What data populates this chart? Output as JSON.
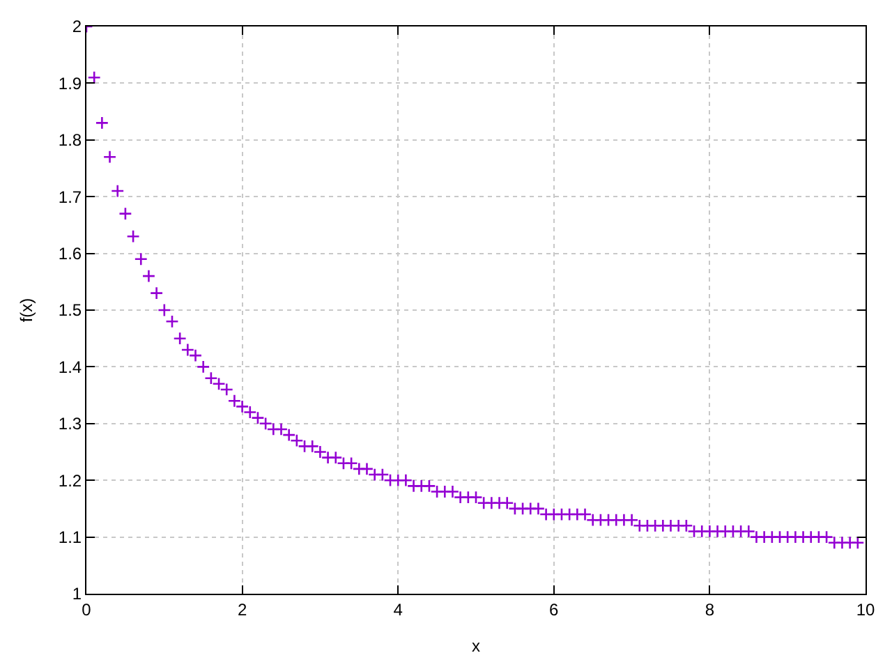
{
  "chart_data": {
    "type": "scatter",
    "xlabel": "x",
    "ylabel": "f(x)",
    "x": [
      0.0,
      0.1,
      0.2,
      0.3,
      0.4,
      0.5,
      0.6,
      0.7,
      0.8,
      0.9,
      1.0,
      1.1,
      1.2,
      1.3,
      1.4,
      1.5,
      1.6,
      1.7,
      1.8,
      1.9,
      2.0,
      2.1,
      2.2,
      2.3,
      2.4,
      2.5,
      2.6,
      2.7,
      2.8,
      2.9,
      3.0,
      3.1,
      3.2,
      3.3,
      3.4,
      3.5,
      3.6,
      3.7,
      3.8,
      3.9,
      4.0,
      4.1,
      4.2,
      4.3,
      4.4,
      4.5,
      4.6,
      4.7,
      4.8,
      4.9,
      5.0,
      5.1,
      5.2,
      5.3,
      5.4,
      5.5,
      5.6,
      5.7,
      5.8,
      5.9,
      6.0,
      6.1,
      6.2,
      6.3,
      6.4,
      6.5,
      6.6,
      6.7,
      6.8,
      6.9,
      7.0,
      7.1,
      7.2,
      7.3,
      7.4,
      7.5,
      7.6,
      7.7,
      7.8,
      7.9,
      8.0,
      8.1,
      8.2,
      8.3,
      8.4,
      8.5,
      8.6,
      8.7,
      8.8,
      8.9,
      9.0,
      9.1,
      9.2,
      9.3,
      9.4,
      9.5,
      9.6,
      9.7,
      9.8,
      9.9
    ],
    "series": [
      {
        "color": "#9400d3",
        "values": [
          2.0,
          1.91,
          1.83,
          1.77,
          1.71,
          1.67,
          1.63,
          1.59,
          1.56,
          1.53,
          1.5,
          1.48,
          1.45,
          1.43,
          1.42,
          1.4,
          1.38,
          1.37,
          1.36,
          1.34,
          1.33,
          1.32,
          1.31,
          1.3,
          1.29,
          1.29,
          1.28,
          1.27,
          1.26,
          1.26,
          1.25,
          1.24,
          1.24,
          1.23,
          1.23,
          1.22,
          1.22,
          1.21,
          1.21,
          1.2,
          1.2,
          1.2,
          1.19,
          1.19,
          1.19,
          1.18,
          1.18,
          1.18,
          1.17,
          1.17,
          1.17,
          1.16,
          1.16,
          1.16,
          1.16,
          1.15,
          1.15,
          1.15,
          1.15,
          1.14,
          1.14,
          1.14,
          1.14,
          1.14,
          1.14,
          1.13,
          1.13,
          1.13,
          1.13,
          1.13,
          1.13,
          1.12,
          1.12,
          1.12,
          1.12,
          1.12,
          1.12,
          1.12,
          1.11,
          1.11,
          1.11,
          1.11,
          1.11,
          1.11,
          1.11,
          1.11,
          1.1,
          1.1,
          1.1,
          1.1,
          1.1,
          1.1,
          1.1,
          1.1,
          1.1,
          1.1,
          1.09,
          1.09,
          1.09,
          1.09
        ]
      }
    ],
    "xlim": [
      0,
      10
    ],
    "xticks": [
      0,
      2,
      4,
      6,
      8,
      10
    ],
    "ylim": [
      1,
      2
    ],
    "yticks": [
      1,
      1.1,
      1.2,
      1.3,
      1.4,
      1.5,
      1.6,
      1.7,
      1.8,
      1.9,
      2
    ],
    "grid": true,
    "marker": "cross"
  }
}
